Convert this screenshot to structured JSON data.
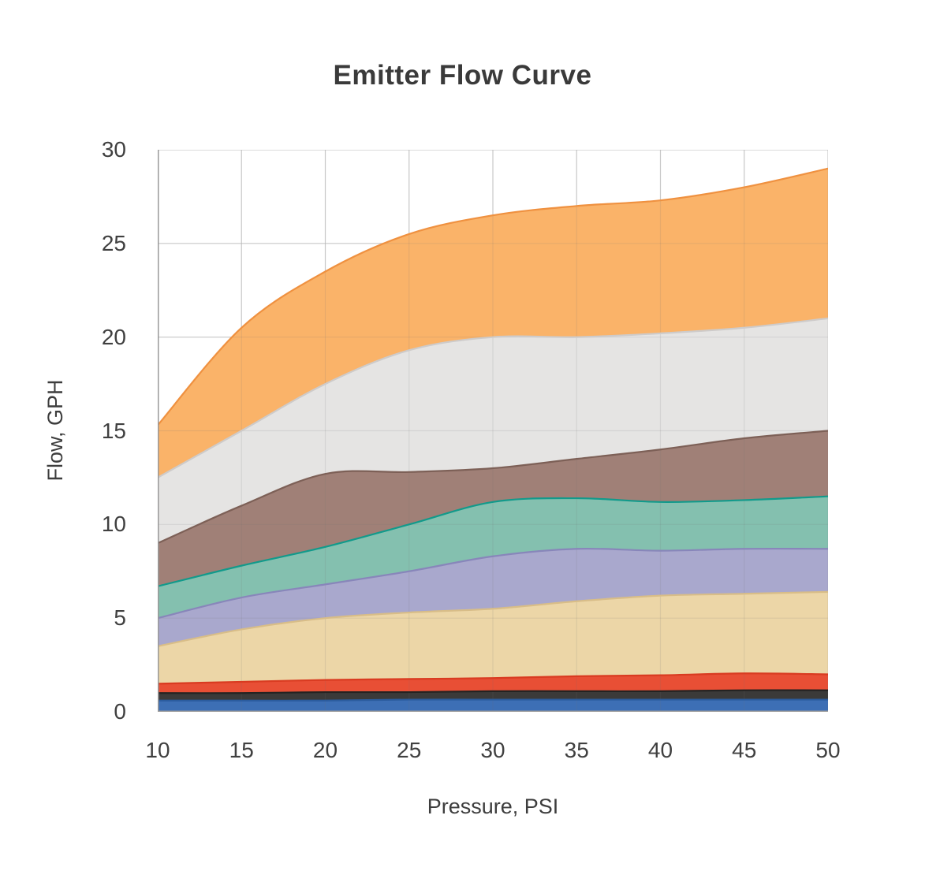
{
  "title": "Emitter Flow Curve",
  "chart_data": {
    "type": "area",
    "stacked": true,
    "title": "Emitter Flow Curve",
    "xlabel": "Pressure, PSI",
    "ylabel": "Flow, GPH",
    "x": [
      10,
      15,
      20,
      25,
      30,
      35,
      40,
      45,
      50
    ],
    "xlim": [
      10,
      50
    ],
    "ylim": [
      0,
      30
    ],
    "x_ticks": [
      10,
      15,
      20,
      25,
      30,
      35,
      40,
      45,
      50
    ],
    "y_ticks": [
      0,
      5,
      10,
      15,
      20,
      25,
      30
    ],
    "grid": true,
    "legend_position": "none",
    "values_are": "cumulative stack top in GPH at each pressure",
    "series": [
      {
        "name": "band-blue",
        "color": "#3d6fb5",
        "edge": "#2b5c9e",
        "cumulative_top": [
          0.6,
          0.6,
          0.6,
          0.65,
          0.65,
          0.65,
          0.65,
          0.65,
          0.65
        ]
      },
      {
        "name": "band-black",
        "color": "#3b3a39",
        "edge": "#242322",
        "cumulative_top": [
          1.0,
          1.0,
          1.05,
          1.05,
          1.1,
          1.1,
          1.1,
          1.15,
          1.15
        ]
      },
      {
        "name": "band-red",
        "color": "#e84f35",
        "edge": "#d93b21",
        "cumulative_top": [
          1.5,
          1.6,
          1.7,
          1.75,
          1.8,
          1.9,
          1.95,
          2.05,
          2.0
        ]
      },
      {
        "name": "band-tan",
        "color": "#ecd6a7",
        "edge": "#d8bd88",
        "cumulative_top": [
          3.5,
          4.4,
          5.0,
          5.3,
          5.5,
          5.9,
          6.2,
          6.3,
          6.4
        ]
      },
      {
        "name": "band-purple",
        "color": "#a9a8cd",
        "edge": "#8886ba",
        "cumulative_top": [
          5.0,
          6.1,
          6.8,
          7.5,
          8.3,
          8.7,
          8.6,
          8.7,
          8.7
        ]
      },
      {
        "name": "band-teal",
        "color": "#84c0af",
        "edge": "#129a8b",
        "cumulative_top": [
          6.7,
          7.8,
          8.8,
          10.0,
          11.2,
          11.4,
          11.2,
          11.3,
          11.5
        ]
      },
      {
        "name": "band-brown",
        "color": "#a08077",
        "edge": "#7d6057",
        "cumulative_top": [
          9.0,
          11.0,
          12.7,
          12.8,
          13.0,
          13.5,
          14.0,
          14.6,
          15.0
        ]
      },
      {
        "name": "band-gray",
        "color": "#e5e4e3",
        "edge": "#cecbca",
        "cumulative_top": [
          12.5,
          15.0,
          17.5,
          19.3,
          20.0,
          20.0,
          20.2,
          20.5,
          21.0
        ]
      },
      {
        "name": "band-orange",
        "color": "#fab369",
        "edge": "#ef9140",
        "cumulative_top": [
          15.3,
          20.5,
          23.5,
          25.5,
          26.5,
          27.0,
          27.3,
          28.0,
          29.0
        ]
      }
    ],
    "grid_color": "#d7d7d7",
    "axis_color": "#9a9a9a",
    "text_color": "#3d3d3d"
  }
}
